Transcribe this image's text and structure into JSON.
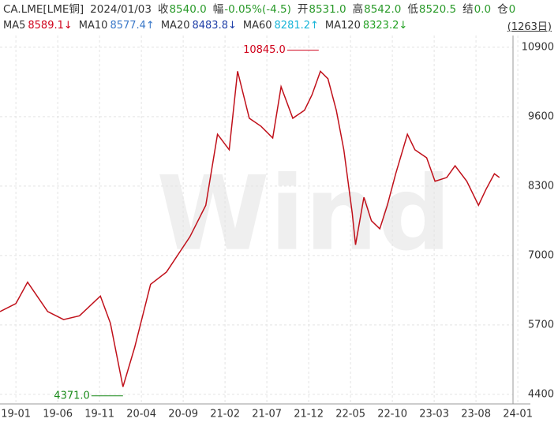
{
  "header": {
    "symbol": "CA.LME[LME铜]",
    "date": "2024/01/03",
    "fields": [
      {
        "label": "收",
        "value": "8540.0"
      },
      {
        "label": "幅",
        "value": "-0.05%(-4.5)"
      },
      {
        "label": "开",
        "value": "8531.0"
      },
      {
        "label": "高",
        "value": "8542.0"
      },
      {
        "label": "低",
        "value": "8520.5"
      },
      {
        "label": "结",
        "value": "0.0"
      },
      {
        "label": "仓",
        "value": "0"
      }
    ],
    "ma": [
      {
        "name": "MA5",
        "value": "8589.1↓",
        "color": "#d0021b"
      },
      {
        "name": "MA10",
        "value": "8577.4↑",
        "color": "#3a78c8"
      },
      {
        "name": "MA20",
        "value": "8483.8↓",
        "color": "#1f3fa8"
      },
      {
        "name": "MA60",
        "value": "8281.2↑",
        "color": "#17b4d8"
      },
      {
        "name": "MA120",
        "value": "8323.2↓",
        "color": "#22a022"
      }
    ],
    "period": "(1263日)"
  },
  "chart_data": {
    "type": "line",
    "color": "#c0101a",
    "watermark": "Wind",
    "x": [
      -1.9,
      0,
      1.4,
      3.8,
      5.7,
      7.6,
      10.1,
      11.3,
      12.8,
      14.2,
      16.1,
      18.0,
      20.8,
      22.7,
      24.1,
      25.5,
      26.5,
      27.9,
      29.3,
      30.7,
      31.7,
      33.1,
      34.5,
      35.4,
      36.4,
      37.3,
      38.3,
      39.2,
      40.2,
      40.6,
      41.6,
      42.5,
      43.5,
      44.4,
      45.4,
      46.8,
      47.7,
      49.1,
      50.1,
      51.5,
      52.5,
      53.9,
      55.3,
      56.2,
      57.2,
      57.8
    ],
    "values": [
      5950,
      6100,
      6500,
      5950,
      5800,
      5870,
      6240,
      5730,
      4540,
      5280,
      6460,
      6690,
      7350,
      7940,
      9270,
      8980,
      10450,
      9570,
      9420,
      9200,
      10160,
      9570,
      9720,
      10010,
      10450,
      10310,
      9720,
      8980,
      7800,
      7200,
      8090,
      7650,
      7500,
      7940,
      8530,
      9270,
      8980,
      8830,
      8390,
      8460,
      8680,
      8390,
      7940,
      8240,
      8530,
      8460
    ],
    "xlim": [
      -1.9,
      61.5
    ],
    "ylim": [
      4220,
      11120
    ],
    "yticks": [
      4400,
      5700,
      7000,
      8300,
      9600,
      10900
    ],
    "xticks": [
      {
        "value": 0,
        "label": "19-01"
      },
      {
        "value": 5,
        "label": "19-06"
      },
      {
        "value": 10,
        "label": "19-11"
      },
      {
        "value": 15,
        "label": "20-04"
      },
      {
        "value": 20,
        "label": "20-09"
      },
      {
        "value": 25,
        "label": "21-02"
      },
      {
        "value": 30,
        "label": "21-07"
      },
      {
        "value": 35,
        "label": "21-12"
      },
      {
        "value": 40,
        "label": "22-05"
      },
      {
        "value": 45,
        "label": "22-10"
      },
      {
        "value": 50,
        "label": "23-03"
      },
      {
        "value": 55,
        "label": "23-08"
      },
      {
        "value": 60,
        "label": "24-01"
      }
    ],
    "annotations": [
      {
        "x": 36.2,
        "value": 10845,
        "label": "10845.0",
        "color": "#d0021b"
      },
      {
        "x": 12.8,
        "value": 4371,
        "label": "4371.0",
        "color": "#1a8a1a"
      }
    ],
    "grid": true
  }
}
